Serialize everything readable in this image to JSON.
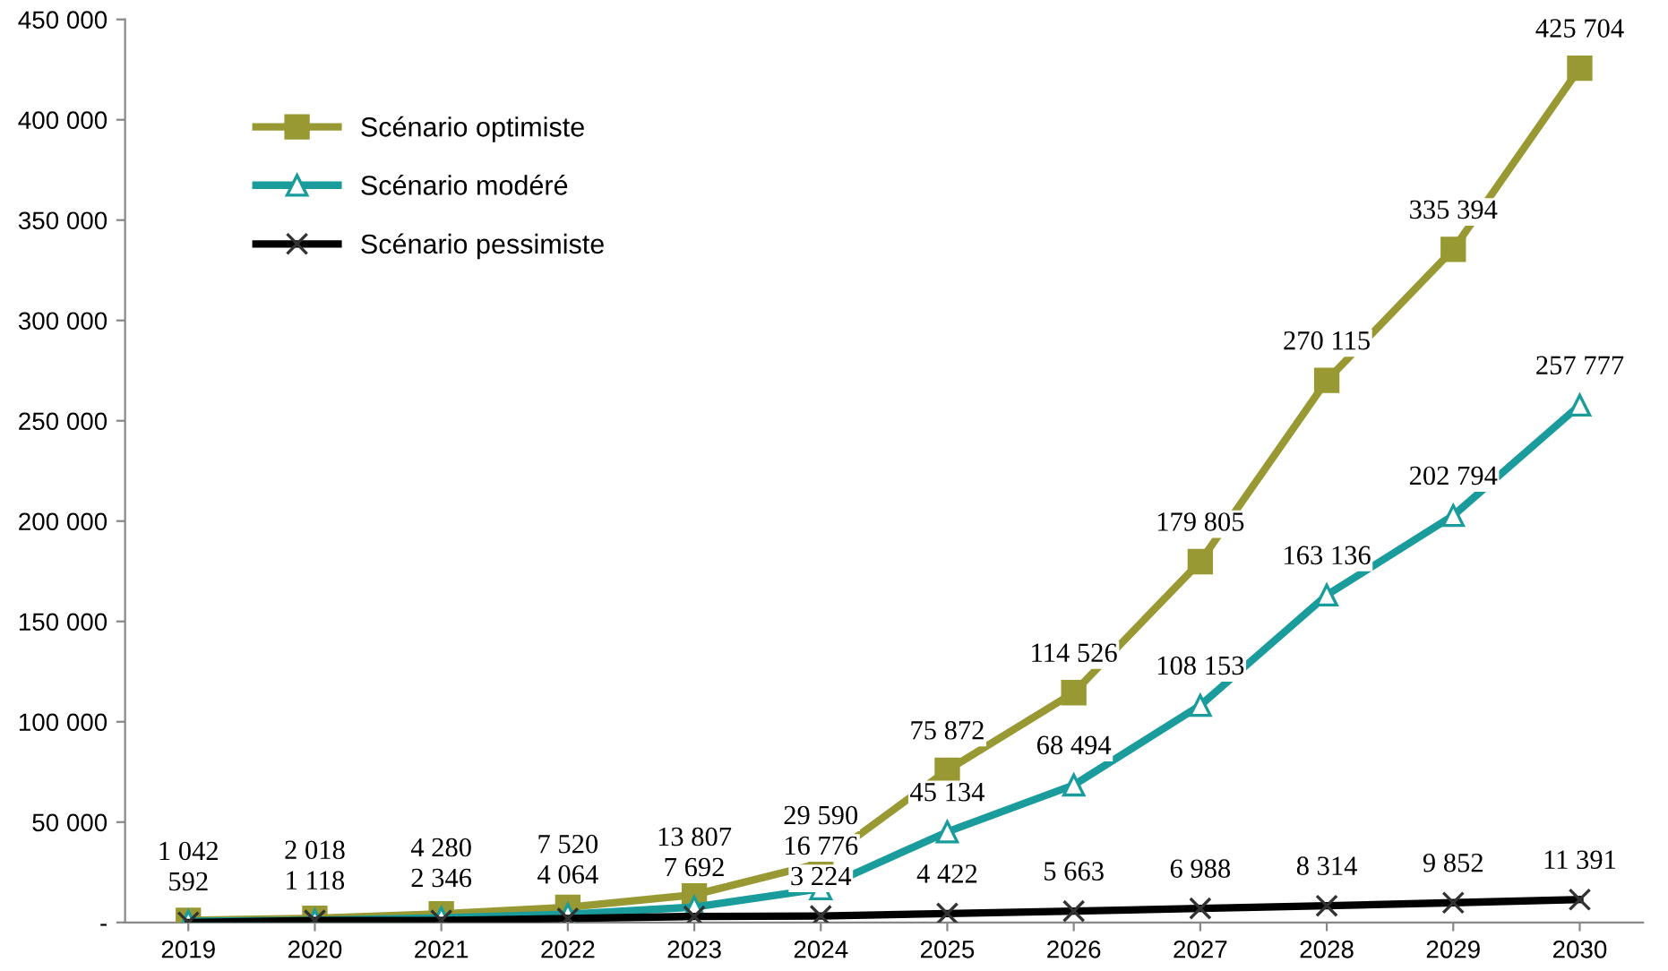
{
  "chart_data": {
    "type": "line",
    "categories": [
      "2019",
      "2020",
      "2021",
      "2022",
      "2023",
      "2024",
      "2025",
      "2026",
      "2027",
      "2028",
      "2029",
      "2030"
    ],
    "series": [
      {
        "name": "Scénario optimiste",
        "color": "#999933",
        "marker": "square",
        "values": [
          1042,
          2018,
          4280,
          7520,
          13807,
          29590,
          75872,
          114526,
          179805,
          270115,
          335394,
          425704
        ]
      },
      {
        "name": "Scénario modéré",
        "color": "#1a9c9c",
        "marker": "triangle",
        "values": [
          592,
          1118,
          2346,
          4064,
          7692,
          16776,
          45134,
          68494,
          108153,
          163136,
          202794,
          257777
        ]
      },
      {
        "name": "Scénario pessimiste",
        "color": "#000000",
        "marker": "cross",
        "values": [
          0,
          1000,
          1000,
          2000,
          3000,
          3224,
          4422,
          5663,
          6988,
          8314,
          9852,
          11391
        ],
        "value_labels": [
          null,
          null,
          null,
          null,
          null,
          "3 224",
          "4 422",
          "5 663",
          "6 988",
          "8 314",
          "9 852",
          "11 391"
        ]
      }
    ],
    "ylim": [
      0,
      450000
    ],
    "yticks": [
      {
        "value": 0,
        "label": "-"
      },
      {
        "value": 50000,
        "label": "50 000"
      },
      {
        "value": 100000,
        "label": "100 000"
      },
      {
        "value": 150000,
        "label": "150 000"
      },
      {
        "value": 200000,
        "label": "200 000"
      },
      {
        "value": 250000,
        "label": "250 000"
      },
      {
        "value": 300000,
        "label": "300 000"
      },
      {
        "value": 350000,
        "label": "350 000"
      },
      {
        "value": 400000,
        "label": "400 000"
      },
      {
        "value": 450000,
        "label": "450 000"
      }
    ],
    "data_labels": true,
    "grid": false,
    "legend": "top left",
    "line_style": "solid"
  }
}
